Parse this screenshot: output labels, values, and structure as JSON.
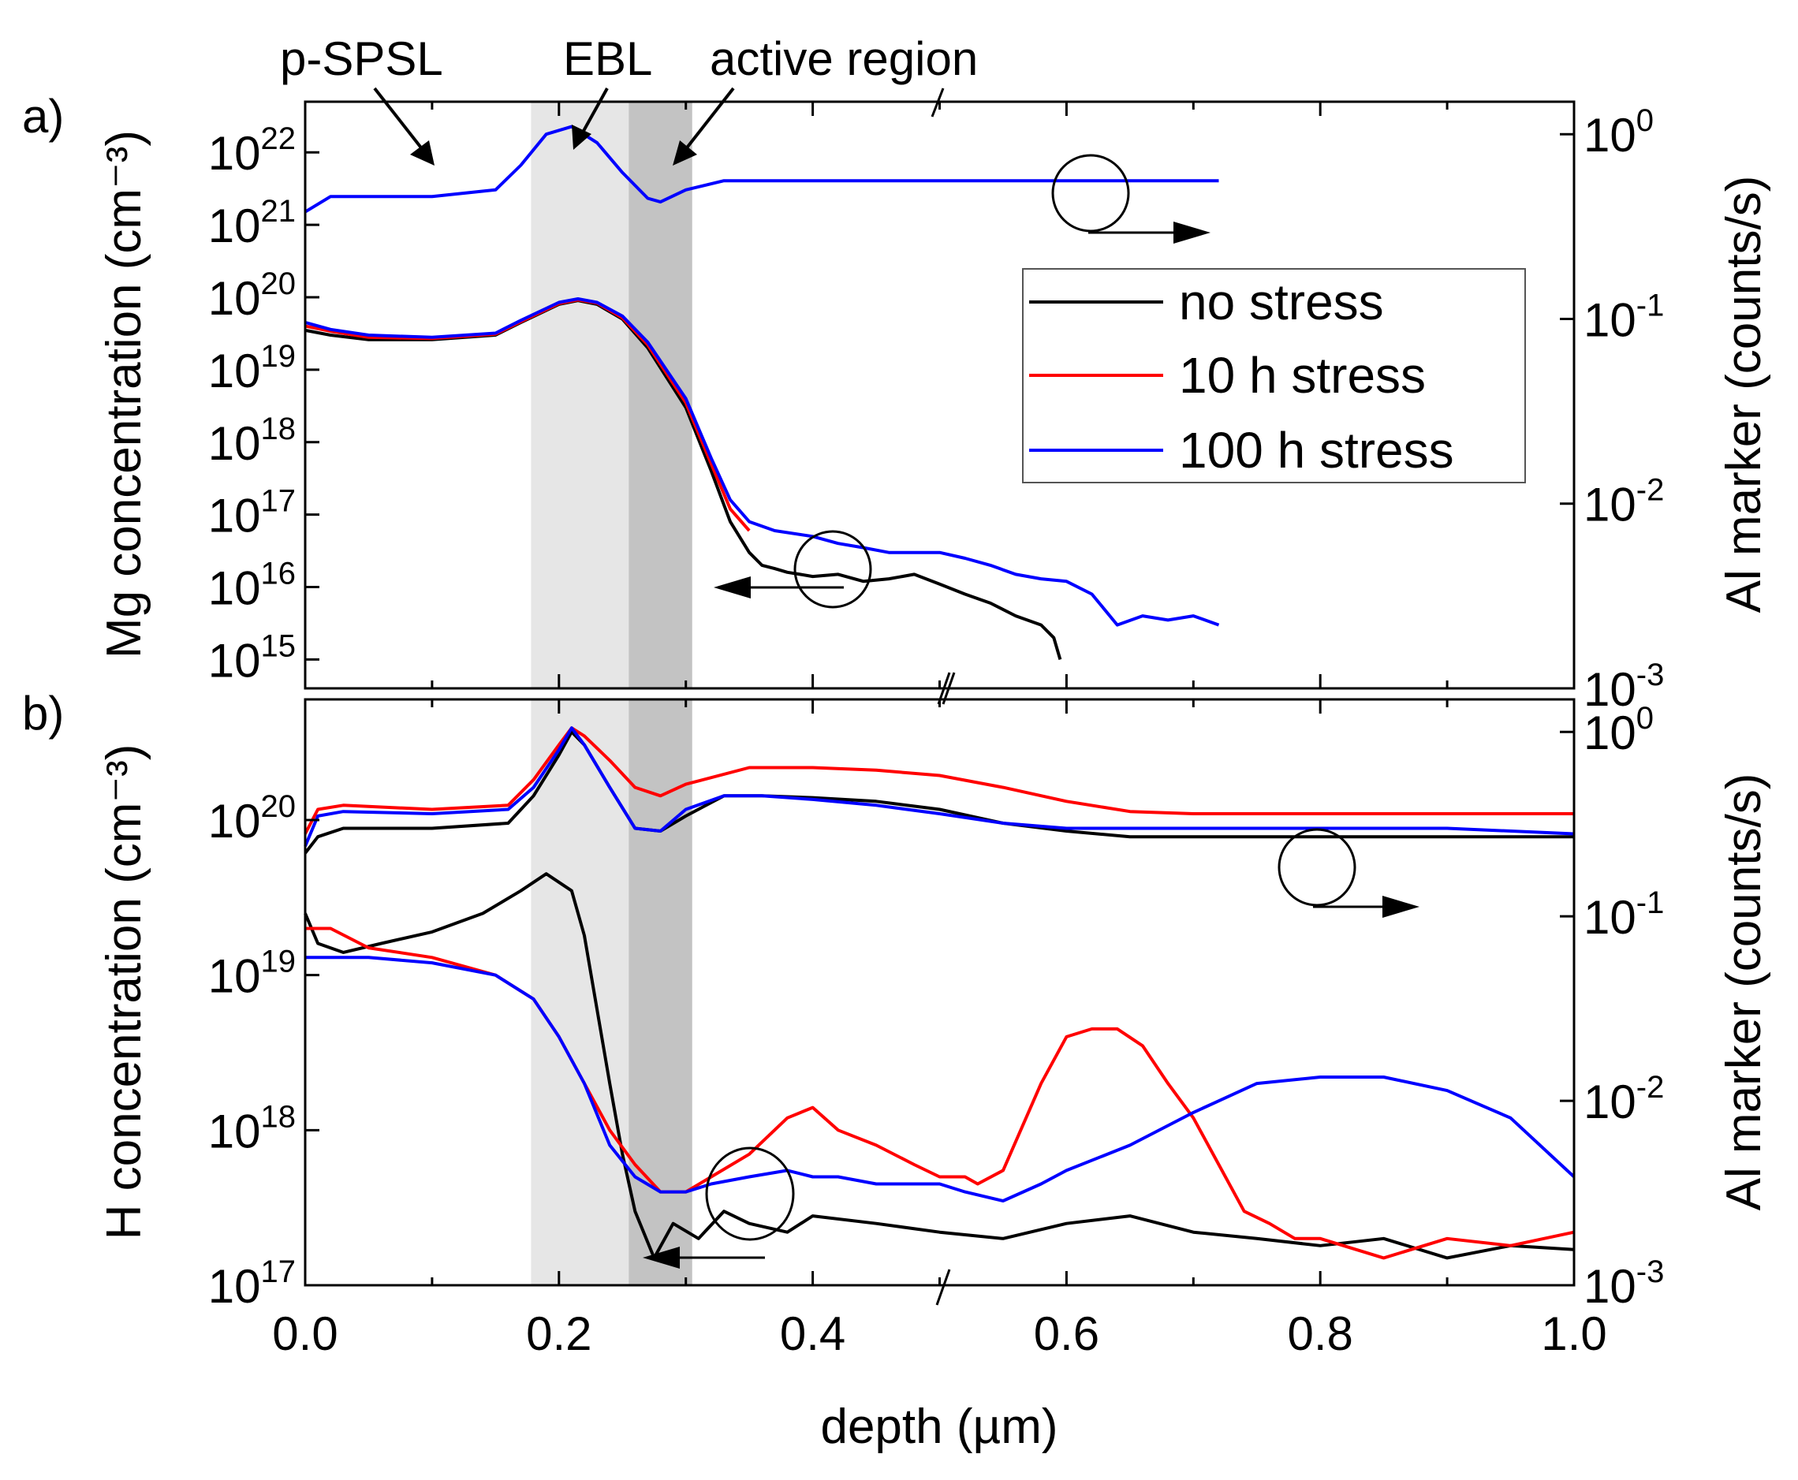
{
  "figure": {
    "xlabel": "depth (µm)",
    "x_ticks": [
      "0.0",
      "0.2",
      "0.4",
      "0.6",
      "0.8",
      "1.0"
    ],
    "series_names": [
      "no stress",
      "10 h stress",
      "100 h stress"
    ],
    "series_colors": [
      "#000000",
      "#ff0000",
      "#0000ff"
    ]
  },
  "annotations": {
    "p_spsl": "p-SPSL",
    "ebl": "EBL",
    "active_region": "active region"
  },
  "chart_data": [
    {
      "panel": "a)",
      "type": "line",
      "xlabel": "depth (µm)",
      "xlim": [
        0,
        1.0
      ],
      "y_left": {
        "label": "Mg concentration (cm⁻³)",
        "scale": "log",
        "lim": [
          400000000000000.0,
          5e+22
        ],
        "tick_base": [
          "10",
          "10",
          "10",
          "10",
          "10",
          "10",
          "10",
          "10"
        ],
        "tick_exp": [
          "15",
          "16",
          "17",
          "18",
          "19",
          "20",
          "21",
          "22"
        ],
        "tick_values": [
          1000000000000000.0,
          1e+16,
          1e+17,
          1e+18,
          1e+19,
          1e+20,
          1e+21,
          1e+22
        ]
      },
      "y_right": {
        "label": "Al marker (counts/s)",
        "scale": "log",
        "lim": [
          0.001,
          1.5
        ],
        "tick_base": [
          "10",
          "10",
          "10",
          "10"
        ],
        "tick_exp": [
          "-3",
          "-2",
          "-1",
          "0"
        ],
        "tick_values": [
          0.001,
          0.01,
          0.1,
          1
        ]
      },
      "shaded_regions": [
        {
          "name": "EBL",
          "x": [
            0.178,
            0.255
          ],
          "color": "#e6e6e6"
        },
        {
          "name": "active region",
          "x": [
            0.255,
            0.305
          ],
          "color": "#c3c3c3"
        }
      ],
      "series": [
        {
          "name": "no stress (Mg)",
          "axis": "left",
          "color": "#000000",
          "x": [
            0.0,
            0.02,
            0.05,
            0.1,
            0.15,
            0.17,
            0.2,
            0.215,
            0.23,
            0.25,
            0.27,
            0.3,
            0.32,
            0.335,
            0.35,
            0.36,
            0.37,
            0.38,
            0.39,
            0.4,
            0.42,
            0.44,
            0.46,
            0.48,
            0.5,
            0.52,
            0.54,
            0.56,
            0.58,
            0.59,
            0.595
          ],
          "y": [
            3.5e+19,
            3e+19,
            2.6e+19,
            2.6e+19,
            3e+19,
            4.5e+19,
            8e+19,
            9e+19,
            8e+19,
            5e+19,
            2e+19,
            3e+18,
            4e+17,
            8e+16,
            3e+16,
            2e+16,
            1.8e+16,
            1.6e+16,
            1.5e+16,
            1.4e+16,
            1.5e+16,
            1.2e+16,
            1.3e+16,
            1.5e+16,
            1.1e+16,
            8000000000000000.0,
            6000000000000000.0,
            4000000000000000.0,
            3000000000000000.0,
            2000000000000000.0,
            1000000000000000.0
          ]
        },
        {
          "name": "10 h stress (Mg)",
          "axis": "left",
          "color": "#ff0000",
          "x": [
            0.0,
            0.02,
            0.05,
            0.1,
            0.15,
            0.17,
            0.2,
            0.215,
            0.23,
            0.25,
            0.27,
            0.3,
            0.32,
            0.335,
            0.35
          ],
          "y": [
            4e+19,
            3.4e+19,
            2.8e+19,
            2.7e+19,
            3.1e+19,
            4.6e+19,
            8.2e+19,
            9.2e+19,
            8.3e+19,
            5.2e+19,
            2.2e+19,
            3.5e+18,
            5e+17,
            1.2e+17,
            6e+16
          ]
        },
        {
          "name": "100 h stress (Mg)",
          "axis": "left",
          "color": "#0000ff",
          "x": [
            0.0,
            0.02,
            0.05,
            0.1,
            0.15,
            0.17,
            0.2,
            0.215,
            0.23,
            0.25,
            0.27,
            0.3,
            0.32,
            0.335,
            0.35,
            0.37,
            0.4,
            0.42,
            0.44,
            0.46,
            0.48,
            0.5,
            0.52,
            0.54,
            0.56,
            0.58,
            0.6,
            0.62,
            0.64,
            0.66,
            0.68,
            0.7,
            0.72
          ],
          "y": [
            4.5e+19,
            3.6e+19,
            3e+19,
            2.8e+19,
            3.2e+19,
            4.8e+19,
            8.5e+19,
            9.5e+19,
            8.5e+19,
            5.5e+19,
            2.4e+19,
            4e+18,
            6e+17,
            1.6e+17,
            8e+16,
            6e+16,
            5e+16,
            4e+16,
            3.5e+16,
            3e+16,
            3e+16,
            3e+16,
            2.5e+16,
            2e+16,
            1.5e+16,
            1.3e+16,
            1.2e+16,
            8000000000000000.0,
            3000000000000000.0,
            4000000000000000.0,
            3500000000000000.0,
            4000000000000000.0,
            3000000000000000.0
          ]
        },
        {
          "name": "100 h stress (Al marker)",
          "axis": "right",
          "color": "#0000ff",
          "x": [
            0.0,
            0.02,
            0.05,
            0.1,
            0.15,
            0.17,
            0.19,
            0.21,
            0.23,
            0.25,
            0.27,
            0.28,
            0.3,
            0.33,
            0.4,
            0.5,
            0.6,
            0.72
          ],
          "y": [
            0.38,
            0.46,
            0.46,
            0.46,
            0.5,
            0.68,
            1.0,
            1.1,
            0.9,
            0.62,
            0.45,
            0.43,
            0.5,
            0.56,
            0.56,
            0.56,
            0.56,
            0.56
          ]
        }
      ]
    },
    {
      "panel": "b)",
      "type": "line",
      "xlabel": "depth (µm)",
      "xlim": [
        0,
        1.0
      ],
      "y_left": {
        "label": "H concentration (cm⁻³)",
        "scale": "log",
        "lim": [
          1e+17,
          6e+20
        ],
        "tick_base": [
          "10",
          "10",
          "10",
          "10"
        ],
        "tick_exp": [
          "17",
          "18",
          "19",
          "20"
        ],
        "tick_values": [
          1e+17,
          1e+18,
          1e+19,
          1e+20
        ]
      },
      "y_right": {
        "label": "Al marker (counts/s)",
        "scale": "log",
        "lim": [
          0.001,
          1.5
        ],
        "tick_base": [
          "10",
          "10",
          "10",
          "10"
        ],
        "tick_exp": [
          "-3",
          "-2",
          "-1",
          "0"
        ],
        "tick_values": [
          0.001,
          0.01,
          0.1,
          1
        ]
      },
      "shaded_regions": [
        {
          "name": "EBL",
          "x": [
            0.178,
            0.255
          ],
          "color": "#e6e6e6"
        },
        {
          "name": "active region",
          "x": [
            0.255,
            0.305
          ],
          "color": "#c3c3c3"
        }
      ],
      "series": [
        {
          "name": "no stress (H)",
          "axis": "left",
          "color": "#000000",
          "x": [
            0.0,
            0.01,
            0.03,
            0.06,
            0.1,
            0.14,
            0.17,
            0.19,
            0.21,
            0.22,
            0.23,
            0.24,
            0.25,
            0.26,
            0.275,
            0.29,
            0.31,
            0.33,
            0.35,
            0.38,
            0.4,
            0.45,
            0.5,
            0.55,
            0.6,
            0.65,
            0.7,
            0.75,
            0.8,
            0.85,
            0.9,
            0.95,
            1.0
          ],
          "y": [
            2.5e+19,
            1.6e+19,
            1.4e+19,
            1.6e+19,
            1.9e+19,
            2.5e+19,
            3.5e+19,
            4.5e+19,
            3.5e+19,
            1.8e+19,
            6e+18,
            2e+18,
            7e+17,
            3e+17,
            1.5e+17,
            2.5e+17,
            2e+17,
            3e+17,
            2.5e+17,
            2.2e+17,
            2.8e+17,
            2.5e+17,
            2.2e+17,
            2e+17,
            2.5e+17,
            2.8e+17,
            2.2e+17,
            2e+17,
            1.8e+17,
            2e+17,
            1.5e+17,
            1.8e+17,
            1.7e+17
          ]
        },
        {
          "name": "10 h stress (H)",
          "axis": "left",
          "color": "#ff0000",
          "x": [
            0.0,
            0.02,
            0.05,
            0.1,
            0.15,
            0.18,
            0.2,
            0.22,
            0.24,
            0.26,
            0.28,
            0.3,
            0.32,
            0.35,
            0.38,
            0.4,
            0.42,
            0.45,
            0.48,
            0.5,
            0.52,
            0.53,
            0.55,
            0.58,
            0.6,
            0.62,
            0.64,
            0.66,
            0.68,
            0.7,
            0.72,
            0.74,
            0.76,
            0.78,
            0.8,
            0.85,
            0.9,
            0.95,
            1.0
          ],
          "y": [
            2e+19,
            2e+19,
            1.5e+19,
            1.3e+19,
            1e+19,
            7e+18,
            4e+18,
            2e+18,
            1e+18,
            6e+17,
            4e+17,
            4e+17,
            5e+17,
            7e+17,
            1.2e+18,
            1.4e+18,
            1e+18,
            8e+17,
            6e+17,
            5e+17,
            5e+17,
            4.5e+17,
            5.5e+17,
            2e+18,
            4e+18,
            4.5e+18,
            4.5e+18,
            3.5e+18,
            2e+18,
            1.2e+18,
            6e+17,
            3e+17,
            2.5e+17,
            2e+17,
            2e+17,
            1.5e+17,
            2e+17,
            1.8e+17,
            2.2e+17
          ]
        },
        {
          "name": "100 h stress (H)",
          "axis": "left",
          "color": "#0000ff",
          "x": [
            0.0,
            0.02,
            0.05,
            0.1,
            0.15,
            0.18,
            0.2,
            0.22,
            0.24,
            0.26,
            0.28,
            0.3,
            0.32,
            0.35,
            0.38,
            0.4,
            0.42,
            0.45,
            0.48,
            0.5,
            0.52,
            0.55,
            0.58,
            0.6,
            0.65,
            0.7,
            0.75,
            0.8,
            0.85,
            0.9,
            0.95,
            1.0
          ],
          "y": [
            1.3e+19,
            1.3e+19,
            1.3e+19,
            1.2e+19,
            1e+19,
            7e+18,
            4e+18,
            2e+18,
            8e+17,
            5e+17,
            4e+17,
            4e+17,
            4.5e+17,
            5e+17,
            5.5e+17,
            5e+17,
            5e+17,
            4.5e+17,
            4.5e+17,
            4.5e+17,
            4e+17,
            3.5e+17,
            4.5e+17,
            5.5e+17,
            8e+17,
            1.3e+18,
            2e+18,
            2.2e+18,
            2.2e+18,
            1.8e+18,
            1.2e+18,
            5e+17
          ]
        },
        {
          "name": "no stress (Al marker)",
          "axis": "right",
          "color": "#000000",
          "x": [
            0.0,
            0.01,
            0.03,
            0.1,
            0.16,
            0.18,
            0.2,
            0.21,
            0.22,
            0.24,
            0.26,
            0.28,
            0.3,
            0.33,
            0.36,
            0.4,
            0.45,
            0.5,
            0.55,
            0.6,
            0.65,
            0.7,
            0.8,
            0.9,
            1.0
          ],
          "y": [
            0.22,
            0.27,
            0.3,
            0.3,
            0.32,
            0.45,
            0.75,
            1.0,
            0.85,
            0.5,
            0.3,
            0.29,
            0.35,
            0.45,
            0.45,
            0.44,
            0.42,
            0.38,
            0.32,
            0.29,
            0.27,
            0.27,
            0.27,
            0.27,
            0.27
          ]
        },
        {
          "name": "10 h stress (Al marker)",
          "axis": "right",
          "color": "#ff0000",
          "x": [
            0.0,
            0.01,
            0.03,
            0.1,
            0.16,
            0.18,
            0.2,
            0.21,
            0.22,
            0.24,
            0.26,
            0.28,
            0.3,
            0.35,
            0.4,
            0.45,
            0.5,
            0.55,
            0.6,
            0.65,
            0.7,
            0.8,
            0.9,
            1.0
          ],
          "y": [
            0.28,
            0.38,
            0.4,
            0.38,
            0.4,
            0.55,
            0.85,
            1.05,
            0.95,
            0.7,
            0.5,
            0.45,
            0.52,
            0.64,
            0.64,
            0.62,
            0.58,
            0.5,
            0.42,
            0.37,
            0.36,
            0.36,
            0.36,
            0.36
          ]
        },
        {
          "name": "100 h stress (Al marker)",
          "axis": "right",
          "color": "#0000ff",
          "x": [
            0.0,
            0.01,
            0.03,
            0.1,
            0.16,
            0.18,
            0.2,
            0.21,
            0.22,
            0.24,
            0.26,
            0.28,
            0.3,
            0.33,
            0.36,
            0.4,
            0.45,
            0.5,
            0.55,
            0.6,
            0.65,
            0.7,
            0.8,
            0.9,
            1.0
          ],
          "y": [
            0.24,
            0.35,
            0.37,
            0.36,
            0.38,
            0.5,
            0.8,
            1.05,
            0.85,
            0.5,
            0.3,
            0.29,
            0.38,
            0.45,
            0.45,
            0.43,
            0.4,
            0.36,
            0.32,
            0.3,
            0.3,
            0.3,
            0.3,
            0.3,
            0.28
          ]
        }
      ]
    }
  ]
}
